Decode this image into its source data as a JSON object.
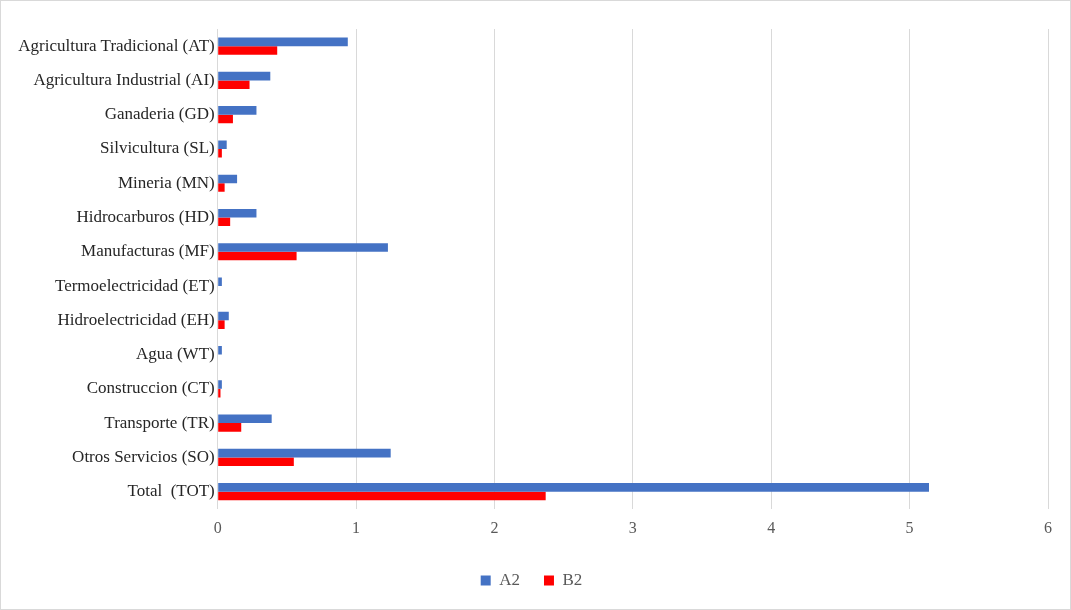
{
  "chart_data": {
    "type": "bar",
    "orientation": "horizontal",
    "categories": [
      "Agricultura Tradicional (AT)",
      "Agricultura Industrial (AI)",
      "Ganaderia (GD)",
      "Silvicultura (SL)",
      "Mineria (MN)",
      "Hidrocarburos (HD)",
      "Manufacturas (MF)",
      "Termoelectricidad (ET)",
      "Hidroelectricidad (EH)",
      "Agua (WT)",
      "Construccion (CT)",
      "Transporte (TR)",
      "Otros Servicios (SO)",
      "Total  (TOT)"
    ],
    "series": [
      {
        "name": "A2",
        "color": "#4472c4",
        "values": [
          0.94,
          0.38,
          0.28,
          0.065,
          0.14,
          0.28,
          1.23,
          0.03,
          0.08,
          0.03,
          0.03,
          0.39,
          1.25,
          5.14
        ]
      },
      {
        "name": "B2",
        "color": "#ff0000",
        "values": [
          0.43,
          0.23,
          0.11,
          0.03,
          0.05,
          0.09,
          0.57,
          0,
          0.05,
          0,
          0.02,
          0.17,
          0.55,
          2.37
        ]
      }
    ],
    "xlim": [
      0,
      6
    ],
    "xticks": [
      0,
      1,
      2,
      3,
      4,
      5,
      6
    ],
    "grid": "x",
    "legend": "bottom"
  }
}
